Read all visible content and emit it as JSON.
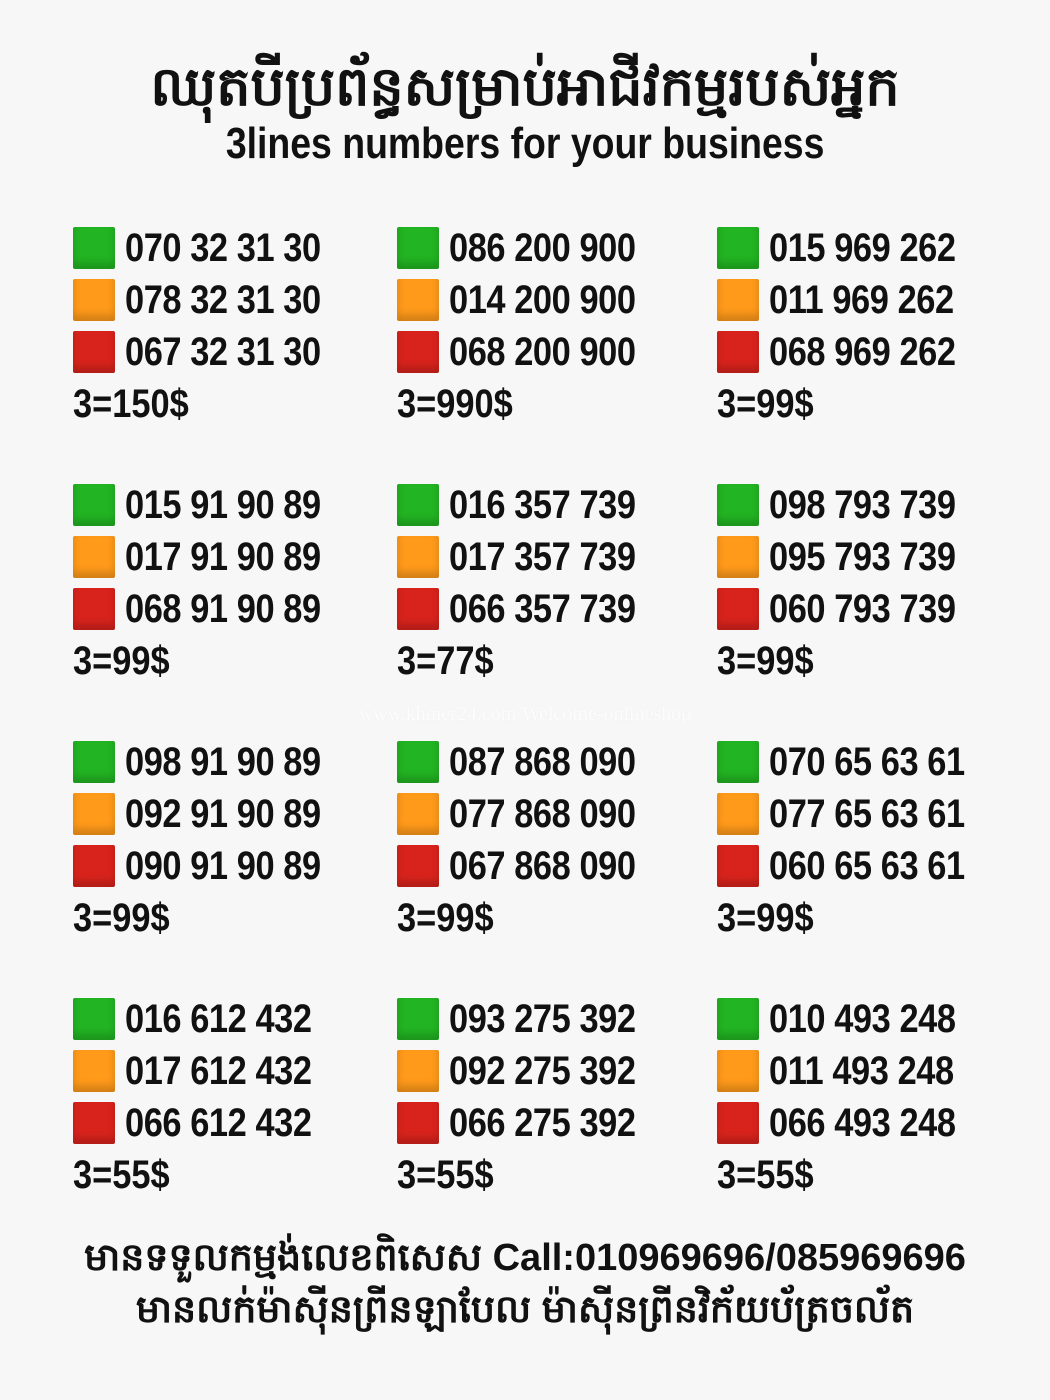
{
  "header": {
    "title_khmer": "ឈុតបីប្រព័ន្ធសម្រាប់អាជីវកម្មរបស់អ្នក",
    "title_english": "3lines numbers for your business"
  },
  "colors": {
    "green": "#22b422",
    "orange": "#ff9a1a",
    "red": "#d8231c"
  },
  "watermark": "www.khmer24.com/Welcome-onlineshop",
  "groups": [
    {
      "numbers": [
        "070 32 31 30",
        "078 32 31 30",
        "067 32 31 30"
      ],
      "price": "3=150$"
    },
    {
      "numbers": [
        "086 200 900",
        "014 200 900",
        "068 200 900"
      ],
      "price": "3=990$"
    },
    {
      "numbers": [
        "015 969 262",
        "011 969 262",
        "068 969 262"
      ],
      "price": "3=99$"
    },
    {
      "numbers": [
        "015 91 90 89",
        "017 91 90 89",
        "068 91 90 89"
      ],
      "price": "3=99$"
    },
    {
      "numbers": [
        "016 357 739",
        "017 357 739",
        "066 357 739"
      ],
      "price": "3=77$"
    },
    {
      "numbers": [
        "098 793 739",
        "095 793 739",
        "060 793 739"
      ],
      "price": "3=99$"
    },
    {
      "numbers": [
        "098 91 90 89",
        "092 91 90 89",
        "090 91 90 89"
      ],
      "price": "3=99$"
    },
    {
      "numbers": [
        "087 868 090",
        "077 868 090",
        "067 868 090"
      ],
      "price": "3=99$"
    },
    {
      "numbers": [
        "070 65 63 61",
        "077 65 63 61",
        "060 65 63 61"
      ],
      "price": "3=99$"
    },
    {
      "numbers": [
        "016 612 432",
        "017 612 432",
        "066 612 432"
      ],
      "price": "3=55$"
    },
    {
      "numbers": [
        "093 275 392",
        "092 275 392",
        "066 275 392"
      ],
      "price": "3=55$"
    },
    {
      "numbers": [
        "010 493 248",
        "011 493 248",
        "066 493 248"
      ],
      "price": "3=55$"
    }
  ],
  "footer": {
    "line1": "មានទទួលកម្មង់លេខពិសេស Call:010969696/085969696",
    "line2": "មានលក់ម៉ាស៊ីនព្រីនឡាបែល ម៉ាស៊ីនព្រីនវិក័យប័ត្រចល័ត"
  }
}
